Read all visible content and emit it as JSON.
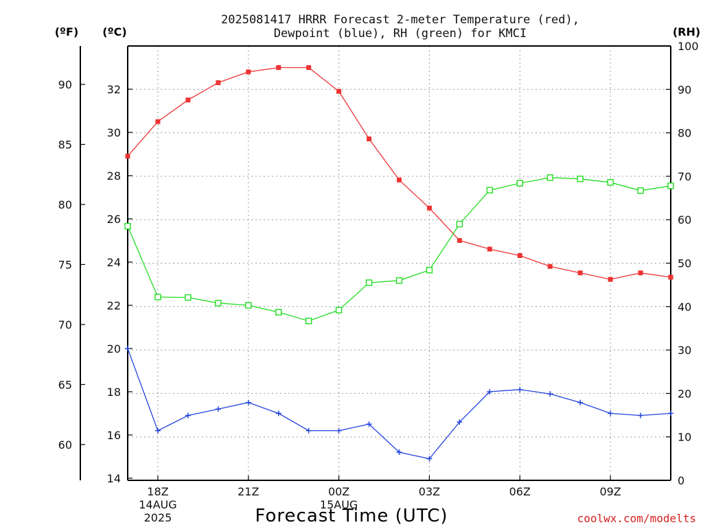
{
  "chart_data": {
    "type": "line",
    "title": "2025081417 HRRR Forecast 2-meter Temperature (red),",
    "subtitle": "Dewpoint (blue), RH (green) for KMCI",
    "xlabel": "Forecast Time (UTC)",
    "credit": "coolwx.com/modelts",
    "units": {
      "fahrenheit": "(ºF)",
      "celsius": "(ºC)",
      "rh": "(RH)"
    },
    "x_hours": [
      17,
      18,
      19,
      20,
      21,
      22,
      23,
      24,
      25,
      26,
      27,
      28,
      29,
      30,
      31,
      32,
      33,
      34,
      35,
      36
    ],
    "x_ticks": [
      {
        "hour": 18,
        "lines": [
          "18Z",
          "14AUG",
          "2025"
        ]
      },
      {
        "hour": 21,
        "lines": [
          "21Z"
        ]
      },
      {
        "hour": 24,
        "lines": [
          "00Z",
          "15AUG"
        ]
      },
      {
        "hour": 27,
        "lines": [
          "03Z"
        ]
      },
      {
        "hour": 30,
        "lines": [
          "06Z"
        ]
      },
      {
        "hour": 33,
        "lines": [
          "09Z"
        ]
      }
    ],
    "xlim": [
      17,
      35
    ],
    "celsius_axis": {
      "range": [
        13.9,
        34.0
      ],
      "ticks": [
        14,
        16,
        18,
        20,
        22,
        24,
        26,
        28,
        30,
        32
      ]
    },
    "fahrenheit_axis": {
      "ticks": [
        60,
        65,
        70,
        75,
        80,
        85,
        90
      ]
    },
    "rh_axis": {
      "range": [
        0,
        100
      ],
      "ticks": [
        0,
        10,
        20,
        30,
        40,
        50,
        60,
        70,
        80,
        90,
        100
      ]
    },
    "series": [
      {
        "name": "Temperature",
        "axis": "celsius",
        "color": "#ee3333",
        "marker": "filled-square",
        "values": [
          28.9,
          30.5,
          31.5,
          32.3,
          32.8,
          33.0,
          33.0,
          31.9,
          29.7,
          27.8,
          26.5,
          25.0,
          24.6,
          24.3,
          23.8,
          23.5,
          23.2,
          23.5,
          23.3,
          23.2
        ]
      },
      {
        "name": "Dewpoint",
        "axis": "celsius",
        "color": "#2244dd",
        "marker": "plus",
        "values": [
          20.0,
          16.2,
          16.9,
          17.2,
          17.5,
          17.0,
          16.2,
          16.2,
          16.5,
          15.2,
          14.9,
          16.6,
          18.0,
          18.1,
          17.9,
          17.5,
          17.0,
          16.9,
          17.0,
          16.9
        ]
      },
      {
        "name": "RH",
        "axis": "rh",
        "color": "#22dd22",
        "marker": "open-square",
        "values": [
          58.5,
          42.2,
          42.1,
          40.8,
          40.3,
          38.7,
          36.7,
          39.2,
          45.5,
          46.0,
          48.4,
          59.0,
          66.8,
          68.4,
          69.7,
          69.4,
          68.6,
          66.7,
          67.8,
          68.0
        ]
      }
    ]
  }
}
